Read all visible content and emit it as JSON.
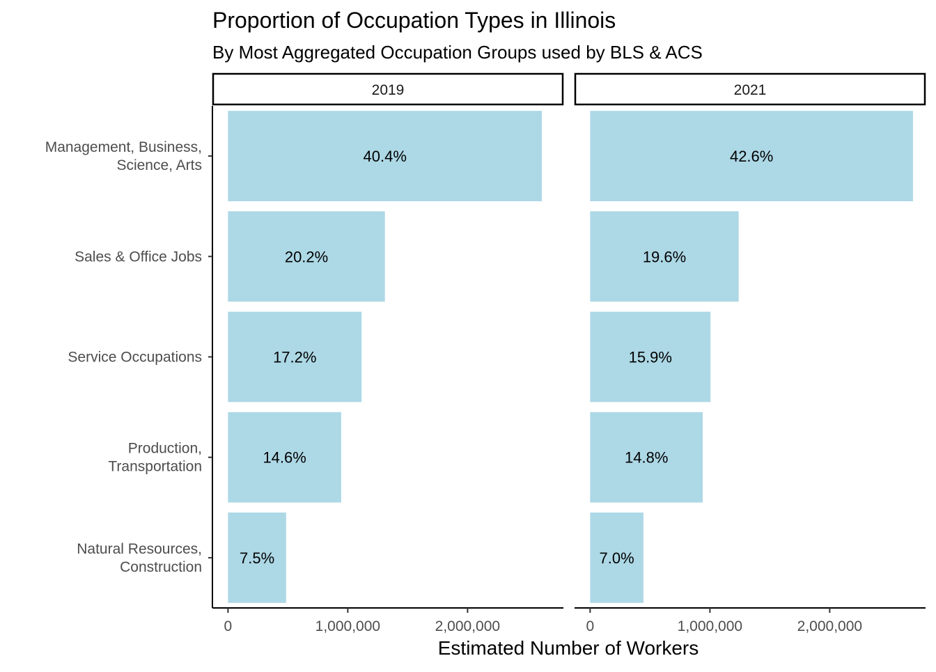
{
  "chart_data": {
    "type": "bar",
    "orientation": "horizontal",
    "title": "Proportion of Occupation Types in  Illinois",
    "subtitle": "By Most Aggregated Occupation Groups used by BLS & ACS",
    "xlabel": "Estimated Number of Workers",
    "ylabel": "",
    "xlim": [
      -130000,
      2800000
    ],
    "x_ticks": [
      0,
      1000000,
      2000000
    ],
    "x_tick_labels": [
      "0",
      "1,000,000",
      "2,000,000"
    ],
    "grid": false,
    "bar_color": "#add8e6",
    "categories": [
      [
        "Management, Business,",
        "Science, Arts"
      ],
      [
        "Sales & Office Jobs"
      ],
      [
        "Service Occupations"
      ],
      [
        "Production,",
        "Transportation"
      ],
      [
        "Natural Resources,",
        "Construction"
      ]
    ],
    "facets": [
      {
        "label": "2019",
        "values": [
          2620000,
          1310000,
          1115000,
          945000,
          485000
        ],
        "bar_labels": [
          "40.4%",
          "20.2%",
          "17.2%",
          "14.6%",
          "7.5%"
        ]
      },
      {
        "label": "2021",
        "values": [
          2695000,
          1240000,
          1005000,
          940000,
          445000
        ],
        "bar_labels": [
          "42.6%",
          "19.6%",
          "15.9%",
          "14.8%",
          "7.0%"
        ]
      }
    ]
  }
}
